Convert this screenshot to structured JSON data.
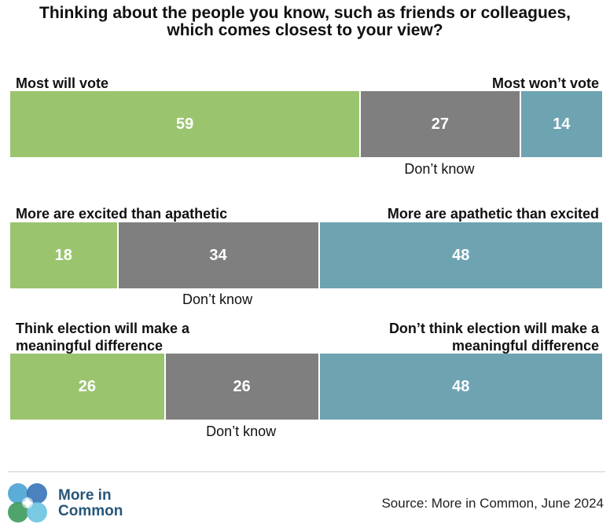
{
  "title": {
    "line1": "Thinking about the people you know, such as friends or colleagues,",
    "line2": "which comes closest to your view?"
  },
  "colors": {
    "positive": "#9bc46f",
    "dont_know": "#7f7f7f",
    "negative": "#6ea3b2",
    "brand": "#27567a"
  },
  "chart_data": {
    "type": "bar",
    "orientation": "horizontal-stacked-100",
    "title": "Thinking about the people you know, such as friends or colleagues, which comes closest to your view?",
    "rows": [
      {
        "left_label": [
          "Most will vote"
        ],
        "right_label": [
          "Most won’t vote"
        ],
        "middle_label": "Don’t know",
        "segments": [
          {
            "name": "positive",
            "value": 59
          },
          {
            "name": "dont_know",
            "value": 27
          },
          {
            "name": "negative",
            "value": 14
          }
        ]
      },
      {
        "left_label": [
          "More are excited than apathetic"
        ],
        "right_label": [
          "More  are apathetic than excited"
        ],
        "middle_label": "Don’t know",
        "segments": [
          {
            "name": "positive",
            "value": 18
          },
          {
            "name": "dont_know",
            "value": 34
          },
          {
            "name": "negative",
            "value": 48
          }
        ]
      },
      {
        "left_label": [
          "Think election will make a",
          "meaningful difference"
        ],
        "right_label": [
          "Don’t think election will make a",
          "meaningful difference"
        ],
        "middle_label": "Don’t know",
        "segments": [
          {
            "name": "positive",
            "value": 26
          },
          {
            "name": "dont_know",
            "value": 26
          },
          {
            "name": "negative",
            "value": 48
          }
        ]
      }
    ]
  },
  "footer": {
    "brand_line1": "More in",
    "brand_line2": "Common",
    "source": "Source: More in Common, June 2024"
  }
}
